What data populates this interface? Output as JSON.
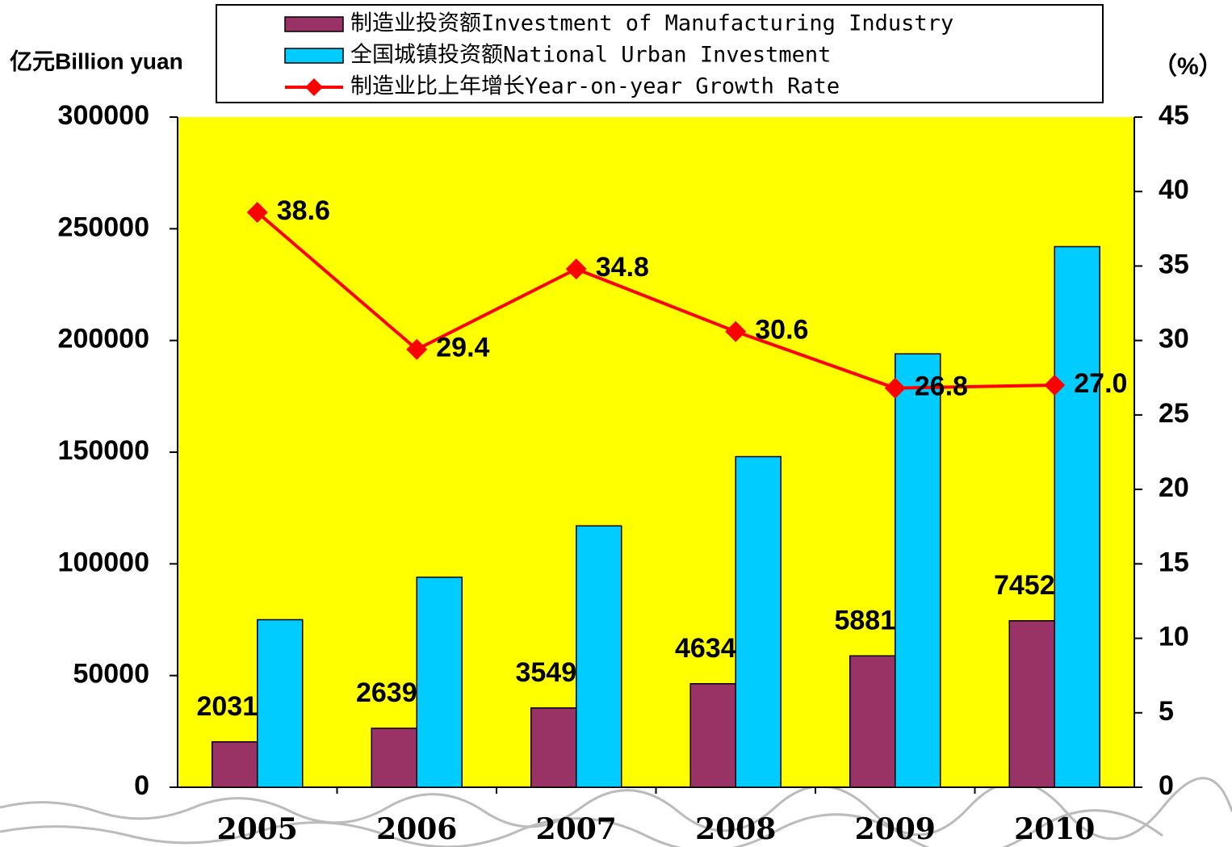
{
  "chart_data": {
    "type": "bar_line",
    "y_label": "亿元Billion yuan",
    "y2_label": "（%）",
    "categories": [
      "2005",
      "2006",
      "2007",
      "2008",
      "2009",
      "2010"
    ],
    "series": [
      {
        "name": "制造业投资额Investment of Manufacturing Industry",
        "type": "bar",
        "color": "#993366",
        "values": [
          20319,
          26399,
          35497,
          46345,
          58817,
          74528
        ]
      },
      {
        "name": "全国城镇投资额National Urban Investment",
        "type": "bar",
        "color": "#00ccff",
        "values": [
          75000,
          94000,
          117000,
          148000,
          194000,
          242000
        ]
      },
      {
        "name": "制造业比上年增长Year-on-year Growth Rate",
        "type": "line",
        "axis": "y2",
        "color": "#ff0000",
        "values": [
          38.6,
          29.4,
          34.8,
          30.6,
          26.8,
          27.0
        ],
        "value_labels": [
          "38.6",
          "29.4",
          "34.8",
          "30.6",
          "26.8",
          "27.0"
        ]
      }
    ],
    "ylim": [
      0,
      300000
    ],
    "yticks": [
      0,
      50000,
      100000,
      150000,
      200000,
      250000,
      300000
    ],
    "y2lim": [
      0,
      45
    ],
    "y2ticks": [
      0,
      5,
      10,
      15,
      20,
      25,
      30,
      35,
      40,
      45
    ],
    "plot_background": "#ffff00"
  }
}
